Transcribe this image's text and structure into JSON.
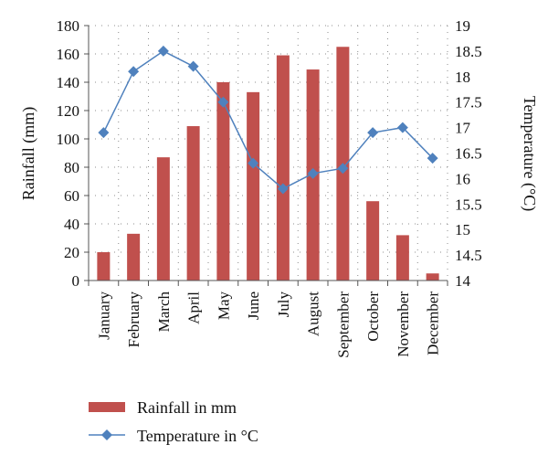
{
  "chart_data": {
    "type": "bar",
    "categories": [
      "January",
      "February",
      "March",
      "April",
      "May",
      "June",
      "July",
      "August",
      "September",
      "October",
      "November",
      "December"
    ],
    "series": [
      {
        "name": "Rainfall in mm",
        "type": "bar",
        "axis": "left",
        "color": "#c0504d",
        "values": [
          20,
          33,
          87,
          109,
          140,
          133,
          159,
          149,
          165,
          56,
          32,
          5
        ]
      },
      {
        "name": "Temperature in °C",
        "type": "line",
        "axis": "right",
        "color": "#4f81bd",
        "marker": "diamond",
        "values": [
          16.9,
          18.1,
          18.5,
          18.2,
          17.5,
          16.3,
          15.8,
          16.1,
          16.2,
          16.9,
          17.0,
          16.4
        ]
      }
    ],
    "ylabel": "Rainfall (mm)",
    "y2label": "Temperature (°C)",
    "ylim": [
      0,
      180
    ],
    "y2lim": [
      14,
      19
    ],
    "yticks": [
      "0",
      "20",
      "40",
      "60",
      "80",
      "100",
      "120",
      "140",
      "160",
      "180"
    ],
    "y2ticks": [
      "14",
      "14.5",
      "15",
      "15.5",
      "16",
      "16.5",
      "17",
      "17.5",
      "18",
      "18.5",
      "19"
    ],
    "grid": "dotted",
    "legend": "bottom"
  }
}
